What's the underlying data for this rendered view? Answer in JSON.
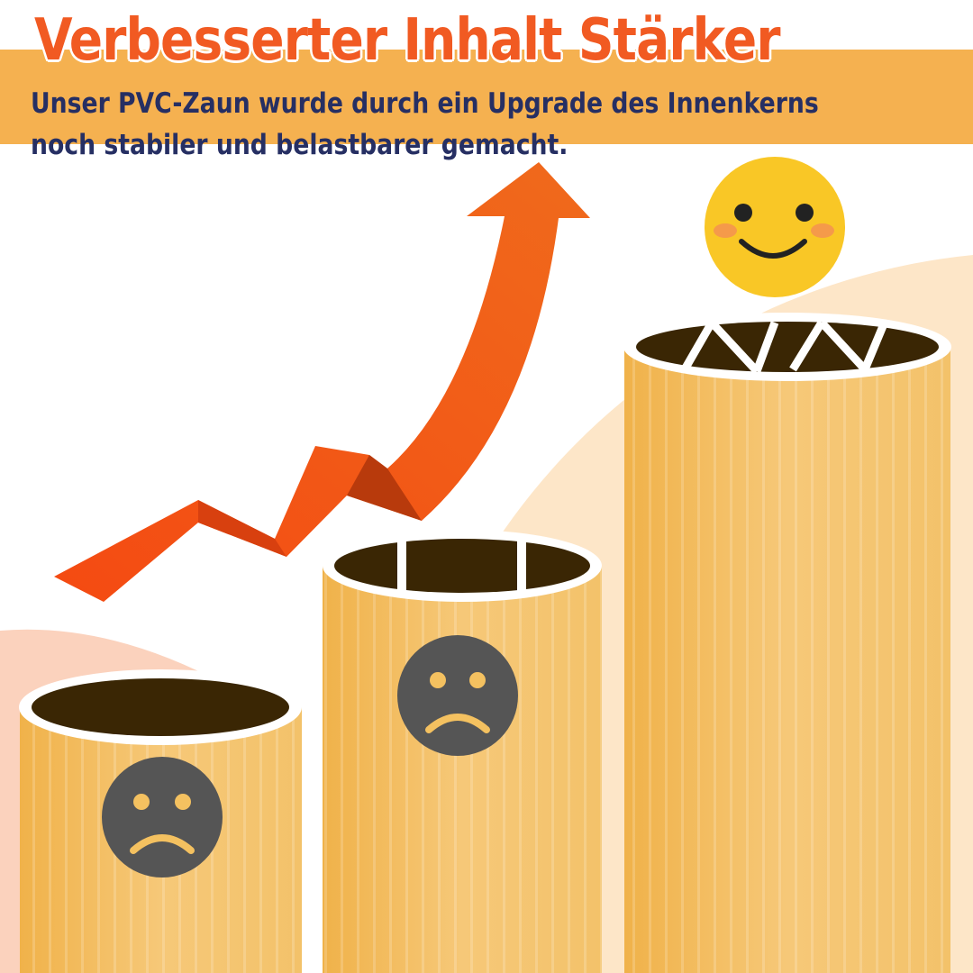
{
  "header": {
    "title": "Verbesserter Inhalt Stärker",
    "subtitle_line1": "Unser PVC-Zaun wurde durch ein Upgrade des Innenkerns",
    "subtitle_line2": "noch stabiler und belastbarer gemacht."
  },
  "colors": {
    "title": "#f15a22",
    "band": "#f5b150",
    "subtitle": "#262f63",
    "pillar": "#f4c160",
    "arrow": "#f05a1a"
  },
  "icons": [
    "sad-face-icon",
    "sad-face-icon",
    "happy-face-icon",
    "growth-arrow-icon"
  ]
}
